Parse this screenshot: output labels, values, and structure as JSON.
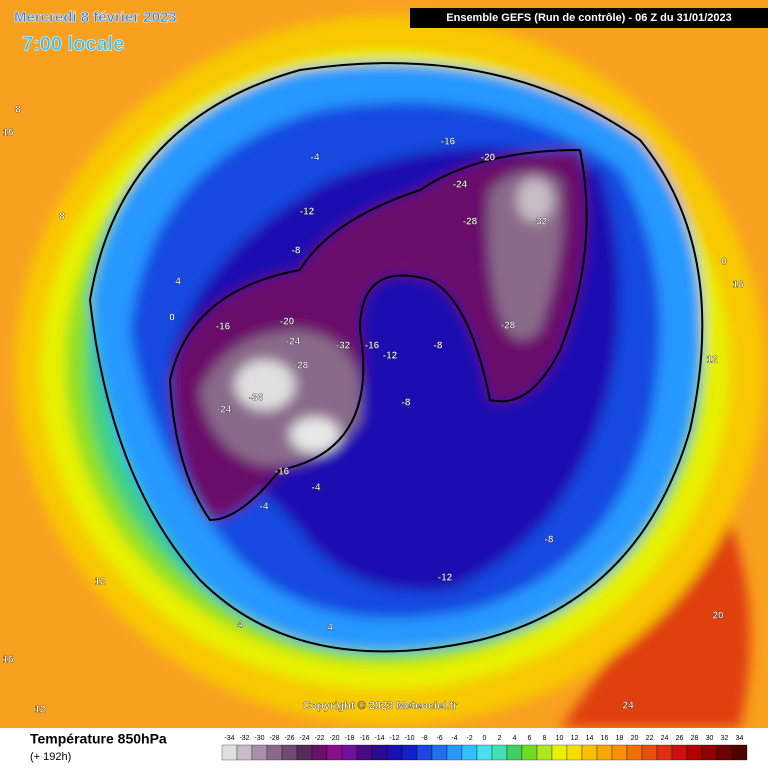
{
  "header": {
    "date": "Mercredi 8 février 2023",
    "time": "7:00 locale",
    "run": "Ensemble GEFS  (Run de contrôle)  -  06 Z du 31/01/2023",
    "copyright": "Copyright © 2023 Meteociel.fr"
  },
  "footer": {
    "variable": "Température 850hPa",
    "lead": "(+ 192h)"
  },
  "legend": {
    "values": [
      -34,
      -32,
      -30,
      -28,
      -26,
      -24,
      -22,
      -20,
      -18,
      -16,
      -14,
      -12,
      -10,
      -8,
      -6,
      -4,
      -2,
      0,
      2,
      4,
      6,
      8,
      10,
      12,
      14,
      16,
      18,
      20,
      22,
      24,
      26,
      28,
      30,
      32,
      34
    ],
    "colors": [
      "#e0e0e0",
      "#c8bcc8",
      "#a890a8",
      "#8a6a8a",
      "#704a70",
      "#5a2a5a",
      "#6a106a",
      "#8a108a",
      "#7010a0",
      "#4a0a80",
      "#2a0a90",
      "#1a10b0",
      "#1020c8",
      "#1848e0",
      "#2070f0",
      "#2898ff",
      "#30c0ff",
      "#48e0f0",
      "#40e0b0",
      "#40d060",
      "#70dc20",
      "#b0e820",
      "#e8f000",
      "#f8dc00",
      "#f8c000",
      "#f8a800",
      "#f89000",
      "#f07000",
      "#e85010",
      "#e03010",
      "#d01010",
      "#b00000",
      "#900000",
      "#700000",
      "#500000"
    ]
  },
  "map": {
    "labels": [
      "-16",
      "-20",
      "-24",
      "-28",
      "-32",
      "-28",
      "-16",
      "-12",
      "-8",
      "-4",
      "0",
      "4",
      "8",
      "12",
      "16",
      "-20",
      "-24",
      "-28",
      "-32",
      "-36",
      "-24",
      "-16",
      "-8",
      "-12",
      "-8",
      "-4",
      "-16",
      "-12",
      "-8",
      "4",
      "12",
      "16",
      "20",
      "24",
      "16",
      "12",
      "8",
      "4",
      "-4",
      "0"
    ]
  }
}
